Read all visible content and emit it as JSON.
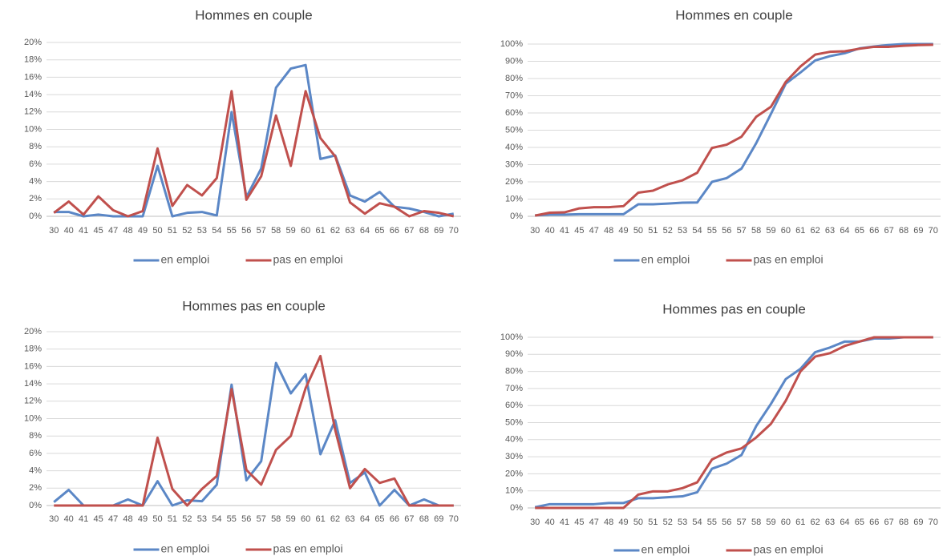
{
  "chart_data": [
    {
      "type": "line",
      "title": "Hommes en couple",
      "categories": [
        "30",
        "40",
        "41",
        "45",
        "47",
        "48",
        "49",
        "50",
        "51",
        "52",
        "53",
        "54",
        "55",
        "56",
        "57",
        "58",
        "59",
        "60",
        "61",
        "62",
        "63",
        "64",
        "65",
        "66",
        "67",
        "68",
        "69",
        "70"
      ],
      "series": [
        {
          "name": "en emploi",
          "color": "#5b87c6",
          "values": [
            0.5,
            0.5,
            0,
            0.2,
            0,
            0,
            0,
            5.8,
            0,
            0.4,
            0.5,
            0.1,
            12,
            2.2,
            5.5,
            14.8,
            17,
            17.4,
            6.6,
            7,
            2.4,
            1.7,
            2.8,
            1.1,
            0.9,
            0.5,
            0,
            0.3
          ]
        },
        {
          "name": "pas en emploi",
          "color": "#c0504d",
          "values": [
            0.4,
            1.7,
            0.2,
            2.3,
            0.7,
            0,
            0.6,
            7.8,
            1.2,
            3.6,
            2.4,
            4.4,
            14.4,
            1.9,
            4.6,
            11.6,
            5.8,
            14.4,
            9,
            6.9,
            1.6,
            0.3,
            1.5,
            1.1,
            0,
            0.6,
            0.4,
            0
          ]
        }
      ],
      "ylim": [
        0,
        20
      ],
      "yticks": [
        {
          "value": 0,
          "label": "0%"
        },
        {
          "value": 2,
          "label": "2%"
        },
        {
          "value": 4,
          "label": "4%"
        },
        {
          "value": 6,
          "label": "6%"
        },
        {
          "value": 8,
          "label": "8%"
        },
        {
          "value": 10,
          "label": "10%"
        },
        {
          "value": 12,
          "label": "12%"
        },
        {
          "value": 14,
          "label": "14%"
        },
        {
          "value": 16,
          "label": "16%"
        },
        {
          "value": 18,
          "label": "18%"
        },
        {
          "value": 20,
          "label": "20%"
        }
      ],
      "grid": true,
      "legend": "bottom"
    },
    {
      "type": "line",
      "title": "Hommes en couple",
      "categories": [
        "30",
        "40",
        "41",
        "45",
        "47",
        "48",
        "49",
        "50",
        "51",
        "52",
        "53",
        "54",
        "55",
        "56",
        "57",
        "58",
        "59",
        "60",
        "61",
        "62",
        "63",
        "64",
        "65",
        "66",
        "67",
        "68",
        "69",
        "70"
      ],
      "series": [
        {
          "name": "en emploi",
          "color": "#5b87c6",
          "values": [
            0.5,
            1,
            1,
            1.2,
            1.2,
            1.2,
            1.2,
            7,
            7,
            7.4,
            7.9,
            8,
            20,
            22.2,
            27.7,
            42.5,
            59.5,
            77,
            83.5,
            90.5,
            93,
            94.7,
            97.5,
            98.6,
            99.5,
            100,
            100,
            100
          ]
        },
        {
          "name": "pas en emploi",
          "color": "#c0504d",
          "values": [
            0.4,
            2.1,
            2.3,
            4.6,
            5.3,
            5.3,
            5.9,
            13.7,
            14.9,
            18.5,
            20.9,
            25.3,
            39.7,
            41.6,
            46.2,
            57.8,
            63.6,
            78,
            87,
            93.9,
            95.5,
            95.8,
            97.3,
            98.4,
            98.4,
            99,
            99.4,
            99.6
          ]
        }
      ],
      "ylim": [
        0,
        100
      ],
      "yticks": [
        {
          "value": 0,
          "label": "0%"
        },
        {
          "value": 10,
          "label": "10%"
        },
        {
          "value": 20,
          "label": "20%"
        },
        {
          "value": 30,
          "label": "30%"
        },
        {
          "value": 40,
          "label": "40%"
        },
        {
          "value": 50,
          "label": "50%"
        },
        {
          "value": 60,
          "label": "60%"
        },
        {
          "value": 70,
          "label": "70%"
        },
        {
          "value": 80,
          "label": "80%"
        },
        {
          "value": 90,
          "label": "90%"
        },
        {
          "value": 100,
          "label": "100%"
        }
      ],
      "grid": true,
      "legend": "bottom"
    },
    {
      "type": "line",
      "title": "Hommes pas en couple",
      "categories": [
        "30",
        "40",
        "41",
        "45",
        "47",
        "48",
        "49",
        "50",
        "51",
        "52",
        "53",
        "54",
        "55",
        "56",
        "57",
        "58",
        "59",
        "60",
        "61",
        "62",
        "63",
        "64",
        "65",
        "66",
        "67",
        "68",
        "69",
        "70"
      ],
      "series": [
        {
          "name": "en emploi",
          "color": "#5b87c6",
          "values": [
            0.4,
            1.8,
            0,
            0,
            0,
            0.7,
            0,
            2.8,
            0,
            0.6,
            0.5,
            2.4,
            13.9,
            2.9,
            5.1,
            16.4,
            12.9,
            15.1,
            5.9,
            9.8,
            2.6,
            3.8,
            0,
            1.8,
            0,
            0.7,
            0,
            0
          ]
        },
        {
          "name": "pas en emploi",
          "color": "#c0504d",
          "values": [
            0,
            0,
            0,
            0,
            0,
            0,
            0,
            7.8,
            1.9,
            0,
            1.9,
            3.4,
            13.4,
            4.1,
            2.4,
            6.4,
            8,
            13.5,
            17.2,
            8.7,
            2,
            4.2,
            2.6,
            3.1,
            0,
            0,
            0,
            0
          ]
        }
      ],
      "ylim": [
        0,
        20
      ],
      "yticks": [
        {
          "value": 0,
          "label": "0%"
        },
        {
          "value": 2,
          "label": "2%"
        },
        {
          "value": 4,
          "label": "4%"
        },
        {
          "value": 6,
          "label": "6%"
        },
        {
          "value": 8,
          "label": "8%"
        },
        {
          "value": 10,
          "label": "10%"
        },
        {
          "value": 12,
          "label": "12%"
        },
        {
          "value": 14,
          "label": "14%"
        },
        {
          "value": 16,
          "label": "16%"
        },
        {
          "value": 18,
          "label": "18%"
        },
        {
          "value": 20,
          "label": "20%"
        }
      ],
      "grid": true,
      "legend": "bottom"
    },
    {
      "type": "line",
      "title": "Hommes pas en couple",
      "categories": [
        "30",
        "40",
        "41",
        "45",
        "47",
        "48",
        "49",
        "50",
        "51",
        "52",
        "53",
        "54",
        "55",
        "56",
        "57",
        "58",
        "59",
        "60",
        "61",
        "62",
        "63",
        "64",
        "65",
        "66",
        "67",
        "68",
        "69",
        "70"
      ],
      "series": [
        {
          "name": "en emploi",
          "color": "#5b87c6",
          "values": [
            0.4,
            2.2,
            2.2,
            2.2,
            2.2,
            2.9,
            2.9,
            5.7,
            5.7,
            6.3,
            6.8,
            9.2,
            23,
            26,
            31,
            48,
            61,
            75.5,
            81.5,
            91.3,
            94,
            97.5,
            97.5,
            99.3,
            99.3,
            100,
            100,
            100
          ]
        },
        {
          "name": "pas en emploi",
          "color": "#c0504d",
          "values": [
            0,
            0,
            0,
            0,
            0,
            0,
            0,
            7.8,
            9.7,
            9.7,
            11.6,
            15,
            28.4,
            32.5,
            34.9,
            41.3,
            49.3,
            62.8,
            80,
            88.7,
            90.7,
            94.9,
            97.5,
            100,
            100,
            100,
            100,
            100
          ]
        }
      ],
      "ylim": [
        0,
        100
      ],
      "yticks": [
        {
          "value": 0,
          "label": "0%"
        },
        {
          "value": 10,
          "label": "10%"
        },
        {
          "value": 20,
          "label": "20%"
        },
        {
          "value": 30,
          "label": "30%"
        },
        {
          "value": 40,
          "label": "40%"
        },
        {
          "value": 50,
          "label": "50%"
        },
        {
          "value": 60,
          "label": "60%"
        },
        {
          "value": 70,
          "label": "70%"
        },
        {
          "value": 80,
          "label": "80%"
        },
        {
          "value": 90,
          "label": "90%"
        },
        {
          "value": 100,
          "label": "100%"
        }
      ],
      "grid": true,
      "legend": "bottom"
    }
  ]
}
